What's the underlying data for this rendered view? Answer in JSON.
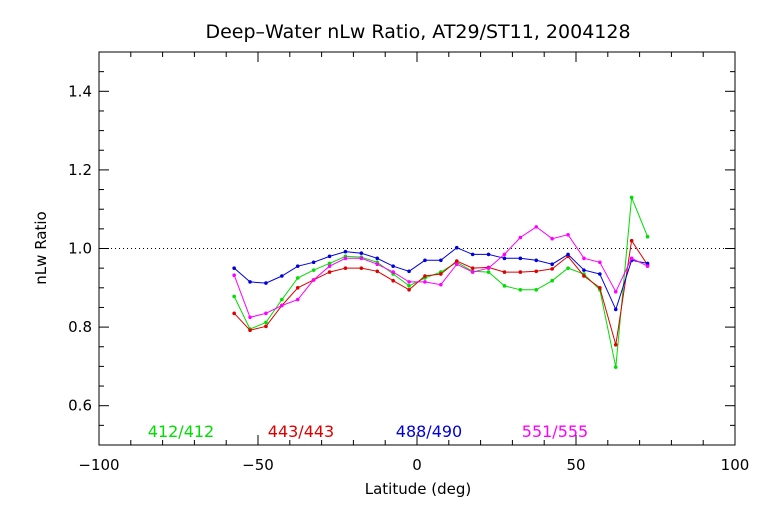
{
  "chart_data": {
    "type": "line",
    "title": "Deep–Water nLw Ratio, AT29/ST11, 2004128",
    "xlabel": "Latitude (deg)",
    "ylabel": "nLw Ratio",
    "xlim": [
      -100,
      100
    ],
    "ylim": [
      0.5,
      1.5
    ],
    "xticks": [
      -100,
      -50,
      0,
      50,
      100
    ],
    "yticks": [
      0.6,
      0.8,
      1.0,
      1.2,
      1.4
    ],
    "xtick_labels": [
      "−100",
      "−50",
      "0",
      "50",
      "100"
    ],
    "ytick_labels": [
      "0.6",
      "0.8",
      "1.0",
      "1.2",
      "1.4"
    ],
    "reference_line": {
      "y": 1.0,
      "style": "dotted"
    },
    "legend_placement": "bottom-inside",
    "series": [
      {
        "name": "412/412",
        "color": "#00dd00",
        "x": [
          -57.5,
          -52.5,
          -47.5,
          -42.5,
          -37.5,
          -32.5,
          -27.5,
          -22.5,
          -17.5,
          -12.5,
          -7.5,
          -2.5,
          2.5,
          7.5,
          12.5,
          17.5,
          22.5,
          27.5,
          32.5,
          37.5,
          42.5,
          47.5,
          52.5,
          57.5,
          62.5,
          67.5,
          72.5
        ],
        "y": [
          0.878,
          0.795,
          0.812,
          0.87,
          0.925,
          0.945,
          0.962,
          0.98,
          0.978,
          0.965,
          0.935,
          0.905,
          0.925,
          0.94,
          0.965,
          0.942,
          0.94,
          0.905,
          0.895,
          0.895,
          0.918,
          0.95,
          0.935,
          0.895,
          0.698,
          1.13,
          1.03
        ]
      },
      {
        "name": "443/443",
        "color": "#dd0000",
        "x": [
          -57.5,
          -52.5,
          -47.5,
          -42.5,
          -37.5,
          -32.5,
          -27.5,
          -22.5,
          -17.5,
          -12.5,
          -7.5,
          -2.5,
          2.5,
          7.5,
          12.5,
          17.5,
          22.5,
          27.5,
          32.5,
          37.5,
          42.5,
          47.5,
          52.5,
          57.5,
          62.5,
          67.5,
          72.5
        ],
        "y": [
          0.835,
          0.792,
          0.802,
          0.855,
          0.9,
          0.92,
          0.94,
          0.95,
          0.95,
          0.942,
          0.918,
          0.895,
          0.93,
          0.935,
          0.968,
          0.95,
          0.952,
          0.94,
          0.94,
          0.942,
          0.948,
          0.98,
          0.93,
          0.9,
          0.755,
          1.02,
          0.958
        ]
      },
      {
        "name": "488/490",
        "color": "#0000dd",
        "x": [
          -57.5,
          -52.5,
          -47.5,
          -42.5,
          -37.5,
          -32.5,
          -27.5,
          -22.5,
          -17.5,
          -12.5,
          -7.5,
          -2.5,
          2.5,
          7.5,
          12.5,
          17.5,
          22.5,
          27.5,
          32.5,
          37.5,
          42.5,
          47.5,
          52.5,
          57.5,
          62.5,
          67.5,
          72.5
        ],
        "y": [
          0.95,
          0.915,
          0.912,
          0.93,
          0.955,
          0.965,
          0.98,
          0.992,
          0.988,
          0.975,
          0.955,
          0.942,
          0.97,
          0.97,
          1.002,
          0.985,
          0.985,
          0.975,
          0.975,
          0.97,
          0.96,
          0.985,
          0.945,
          0.935,
          0.845,
          0.97,
          0.962
        ]
      },
      {
        "name": "551/555",
        "color": "#ff00ff",
        "x": [
          -57.5,
          -52.5,
          -47.5,
          -42.5,
          -37.5,
          -32.5,
          -27.5,
          -22.5,
          -17.5,
          -12.5,
          -7.5,
          -2.5,
          2.5,
          7.5,
          12.5,
          17.5,
          22.5,
          27.5,
          32.5,
          37.5,
          42.5,
          47.5,
          52.5,
          57.5,
          62.5,
          67.5,
          72.5
        ],
        "y": [
          0.932,
          0.825,
          0.835,
          0.855,
          0.87,
          0.92,
          0.955,
          0.975,
          0.975,
          0.96,
          0.94,
          0.915,
          0.915,
          0.908,
          0.96,
          0.94,
          0.95,
          0.985,
          1.028,
          1.055,
          1.025,
          1.035,
          0.975,
          0.965,
          0.89,
          0.975,
          0.955
        ]
      }
    ]
  }
}
